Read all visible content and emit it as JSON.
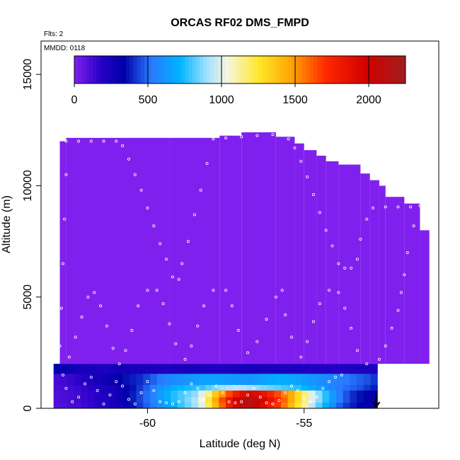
{
  "chart_data": {
    "type": "heatmap",
    "title": "ORCAS RF02 DMS_FMPD",
    "annotations": {
      "flights": "Flts: 2",
      "date": "MMDD: 0118"
    },
    "xlabel": "Latitude (deg N)",
    "ylabel": "Altitude (m)",
    "xlim": [
      -63.4,
      -50.7
    ],
    "ylim": [
      0,
      16500
    ],
    "xticks": [
      -60,
      -55
    ],
    "xtick_labels": [
      "-60",
      "-55"
    ],
    "yticks": [
      0,
      5000,
      10000,
      15000
    ],
    "ytick_labels": [
      "0",
      "5000",
      "10000",
      "15000"
    ],
    "grid": false,
    "colorbar": {
      "range": [
        0,
        2250
      ],
      "ticks": [
        0,
        500,
        1000,
        1500,
        2000
      ],
      "tick_labels": [
        "0",
        "500",
        "1000",
        "1500",
        "2000"
      ],
      "placement": "top-inside"
    },
    "colors": {
      "background_cell": "#8020ee",
      "low": "#0000a8",
      "mid": "#00aaff",
      "high": "#ffd800",
      "max": "#a81818"
    },
    "arrow_marker": {
      "x": -52.7,
      "direction": "down"
    },
    "column_tops": [
      {
        "x0": -62.8,
        "x1": -62.6,
        "top": 12000
      },
      {
        "x0": -62.6,
        "x1": -59.3,
        "top": 12150
      },
      {
        "x0": -59.3,
        "x1": -57.7,
        "top": 12150
      },
      {
        "x0": -57.7,
        "x1": -57.0,
        "top": 12250
      },
      {
        "x0": -57.0,
        "x1": -55.9,
        "top": 12400
      },
      {
        "x0": -55.9,
        "x1": -55.3,
        "top": 12200
      },
      {
        "x0": -55.3,
        "x1": -55.0,
        "top": 11900
      },
      {
        "x0": -55.0,
        "x1": -54.6,
        "top": 11600
      },
      {
        "x0": -54.6,
        "x1": -54.3,
        "top": 11350
      },
      {
        "x0": -54.3,
        "x1": -53.9,
        "top": 11100
      },
      {
        "x0": -53.9,
        "x1": -53.2,
        "top": 10950
      },
      {
        "x0": -53.2,
        "x1": -52.9,
        "top": 10550
      },
      {
        "x0": -52.9,
        "x1": -52.6,
        "top": 10250
      },
      {
        "x0": -52.6,
        "x1": -52.4,
        "top": 10000
      },
      {
        "x0": -52.4,
        "x1": -51.8,
        "top": 9500
      },
      {
        "x0": -51.8,
        "x1": -51.3,
        "top": 9200
      },
      {
        "x0": -51.3,
        "x1": -51.0,
        "top": 8000
      }
    ],
    "column_bottoms": [
      {
        "x0": -62.8,
        "x1": -51.3,
        "bottom": 0
      }
    ],
    "low_layer": {
      "x_start": -63.0,
      "x_end": -52.6,
      "cell_width": 0.22,
      "rows": [
        {
          "y0": 1550,
          "y1": 2000,
          "values": [
            320,
            300,
            280,
            260,
            250,
            240,
            230,
            220,
            240,
            260,
            260,
            250,
            240,
            240,
            230,
            230,
            220,
            230,
            230,
            240,
            240,
            230,
            220,
            210,
            210,
            220,
            230,
            240,
            250,
            250,
            240,
            230,
            230,
            220,
            220,
            230,
            220,
            210,
            210,
            200,
            200,
            210,
            220,
            220,
            230,
            220,
            210
          ]
        },
        {
          "y0": 1050,
          "y1": 1550,
          "values": [
            120,
            130,
            150,
            170,
            200,
            220,
            250,
            280,
            300,
            330,
            360,
            380,
            400,
            440,
            480,
            520,
            560,
            580,
            600,
            620,
            640,
            650,
            660,
            660,
            650,
            640,
            630,
            620,
            620,
            640,
            660,
            680,
            700,
            690,
            680,
            660,
            640,
            620,
            600,
            580,
            560,
            540,
            520,
            500,
            480,
            460,
            420
          ]
        },
        {
          "y0": 800,
          "y1": 1050,
          "values": [
            110,
            120,
            130,
            140,
            160,
            180,
            200,
            220,
            240,
            280,
            320,
            360,
            420,
            480,
            540,
            600,
            650,
            700,
            720,
            740,
            760,
            780,
            820,
            860,
            900,
            920,
            940,
            930,
            900,
            880,
            860,
            840,
            820,
            800,
            780,
            760,
            720,
            680,
            640,
            600,
            560,
            520,
            500,
            480,
            460,
            420,
            380
          ]
        },
        {
          "y0": 500,
          "y1": 800,
          "values": [
            100,
            110,
            120,
            130,
            150,
            170,
            190,
            210,
            240,
            280,
            320,
            380,
            440,
            500,
            560,
            640,
            700,
            760,
            800,
            840,
            880,
            1000,
            1150,
            1350,
            1500,
            1650,
            1800,
            1900,
            1950,
            1900,
            1850,
            1750,
            1650,
            1550,
            1450,
            1300,
            1150,
            1000,
            880,
            760,
            640,
            540,
            460,
            400,
            360,
            340,
            320
          ]
        },
        {
          "y0": 250,
          "y1": 500,
          "values": [
            100,
            110,
            120,
            130,
            150,
            170,
            190,
            210,
            240,
            280,
            320,
            380,
            440,
            500,
            560,
            640,
            700,
            760,
            800,
            860,
            920,
            1050,
            1250,
            1450,
            1650,
            1850,
            2000,
            2100,
            2150,
            2050,
            1950,
            1850,
            1750,
            1600,
            1450,
            1300,
            1150,
            1000,
            880,
            760,
            640,
            540,
            460,
            400,
            360,
            340,
            320
          ]
        },
        {
          "y0": 0,
          "y1": 250,
          "values": [
            90,
            100,
            110,
            120,
            140,
            160,
            180,
            200,
            230,
            260,
            300,
            360,
            420,
            480,
            540,
            600,
            660,
            720,
            780,
            840,
            900,
            1000,
            1200,
            1400,
            1600,
            1800,
            1950,
            2050,
            2100,
            2000,
            1900,
            1800,
            1700,
            1550,
            1400,
            1250,
            1100,
            950,
            820,
            700,
            580,
            480,
            420,
            380,
            340,
            320,
            300
          ]
        }
      ]
    },
    "flight_track": [
      [
        -62.8,
        2800
      ],
      [
        -62.75,
        4500
      ],
      [
        -62.7,
        6500
      ],
      [
        -62.65,
        8500
      ],
      [
        -62.6,
        10500
      ],
      [
        -62.6,
        12000
      ],
      [
        -62.2,
        12000
      ],
      [
        -61.8,
        12000
      ],
      [
        -61.4,
        12000
      ],
      [
        -61.0,
        12000
      ],
      [
        -60.8,
        11800
      ],
      [
        -60.6,
        11200
      ],
      [
        -60.4,
        10500
      ],
      [
        -60.2,
        9800
      ],
      [
        -60.0,
        9000
      ],
      [
        -59.8,
        8200
      ],
      [
        -59.6,
        7400
      ],
      [
        -59.4,
        6700
      ],
      [
        -59.2,
        5900
      ],
      [
        -59.0,
        5800
      ],
      [
        -58.9,
        6500
      ],
      [
        -58.7,
        7500
      ],
      [
        -58.5,
        8700
      ],
      [
        -58.3,
        9800
      ],
      [
        -58.1,
        11000
      ],
      [
        -57.9,
        12100
      ],
      [
        -57.5,
        12150
      ],
      [
        -57.0,
        12200
      ],
      [
        -56.5,
        12250
      ],
      [
        -56.0,
        12300
      ],
      [
        -55.7,
        12300
      ],
      [
        -55.5,
        12100
      ],
      [
        -55.3,
        11700
      ],
      [
        -55.1,
        11100
      ],
      [
        -54.9,
        10400
      ],
      [
        -54.7,
        9600
      ],
      [
        -54.5,
        8800
      ],
      [
        -54.3,
        8000
      ],
      [
        -54.1,
        7300
      ],
      [
        -53.9,
        6500
      ],
      [
        -53.7,
        6300
      ],
      [
        -53.5,
        6300
      ],
      [
        -53.3,
        6700
      ],
      [
        -53.2,
        7600
      ],
      [
        -53.0,
        8500
      ],
      [
        -52.8,
        9000
      ],
      [
        -52.4,
        9050
      ],
      [
        -52.0,
        9050
      ],
      [
        -51.6,
        9050
      ],
      [
        -51.3,
        9100
      ],
      [
        -51.2,
        9100
      ],
      [
        -51.5,
        8200
      ],
      [
        -51.7,
        7000
      ],
      [
        -51.8,
        6000
      ],
      [
        -51.9,
        5200
      ],
      [
        -52.0,
        4400
      ],
      [
        -52.2,
        3600
      ],
      [
        -52.4,
        2800
      ],
      [
        -52.6,
        2200
      ],
      [
        -53.0,
        2000
      ],
      [
        -53.3,
        2600
      ],
      [
        -53.5,
        3600
      ],
      [
        -53.7,
        4500
      ],
      [
        -53.9,
        5200
      ],
      [
        -54.2,
        5300
      ],
      [
        -54.5,
        4700
      ],
      [
        -54.7,
        3900
      ],
      [
        -54.9,
        3000
      ],
      [
        -55.1,
        2300
      ],
      [
        -55.4,
        3200
      ],
      [
        -55.6,
        4200
      ],
      [
        -55.7,
        5300
      ],
      [
        -55.9,
        5000
      ],
      [
        -56.2,
        4000
      ],
      [
        -56.5,
        3000
      ],
      [
        -56.8,
        2500
      ],
      [
        -57.1,
        3500
      ],
      [
        -57.3,
        4600
      ],
      [
        -57.5,
        5300
      ],
      [
        -57.9,
        5300
      ],
      [
        -58.2,
        4600
      ],
      [
        -58.4,
        3700
      ],
      [
        -58.6,
        2800
      ],
      [
        -58.8,
        2200
      ],
      [
        -59.1,
        2900
      ],
      [
        -59.3,
        3800
      ],
      [
        -59.5,
        4700
      ],
      [
        -59.7,
        5300
      ],
      [
        -60.0,
        5300
      ],
      [
        -60.3,
        4600
      ],
      [
        -60.5,
        3500
      ],
      [
        -60.7,
        2600
      ],
      [
        -60.9,
        2000
      ],
      [
        -61.1,
        2700
      ],
      [
        -61.3,
        3700
      ],
      [
        -61.5,
        4600
      ],
      [
        -61.7,
        5200
      ],
      [
        -61.9,
        5000
      ],
      [
        -62.1,
        4100
      ],
      [
        -62.3,
        3200
      ],
      [
        -62.5,
        2300
      ],
      [
        -62.7,
        1500
      ],
      [
        -62.6,
        900
      ],
      [
        -62.4,
        300
      ],
      [
        -62.2,
        500
      ],
      [
        -62.0,
        1100
      ],
      [
        -61.8,
        1400
      ],
      [
        -61.6,
        800
      ],
      [
        -61.4,
        200
      ],
      [
        -61.2,
        600
      ],
      [
        -61.0,
        1200
      ],
      [
        -60.8,
        1000
      ],
      [
        -60.6,
        400
      ],
      [
        -60.4,
        200
      ],
      [
        -60.2,
        700
      ],
      [
        -60.0,
        1200
      ],
      [
        -59.8,
        800
      ],
      [
        -59.6,
        300
      ],
      [
        -59.4,
        250
      ],
      [
        -59.2,
        200
      ],
      [
        -59.0,
        300
      ],
      [
        -58.8,
        700
      ],
      [
        -58.6,
        1100
      ],
      [
        -58.4,
        900
      ],
      [
        -58.2,
        400
      ],
      [
        -58.0,
        600
      ],
      [
        -57.8,
        1000
      ],
      [
        -57.6,
        700
      ],
      [
        -57.4,
        300
      ],
      [
        -57.2,
        250
      ],
      [
        -57.0,
        300
      ],
      [
        -56.8,
        600
      ],
      [
        -56.6,
        900
      ],
      [
        -56.4,
        500
      ],
      [
        -56.2,
        250
      ],
      [
        -56.0,
        200
      ],
      [
        -55.8,
        350
      ],
      [
        -55.6,
        700
      ],
      [
        -55.4,
        1000
      ],
      [
        -55.2,
        800
      ],
      [
        -55.0,
        450
      ],
      [
        -54.8,
        300
      ],
      [
        -54.6,
        500
      ],
      [
        -54.4,
        900
      ],
      [
        -54.2,
        1200
      ],
      [
        -54.0,
        1400
      ],
      [
        -53.8,
        1500
      ]
    ]
  }
}
